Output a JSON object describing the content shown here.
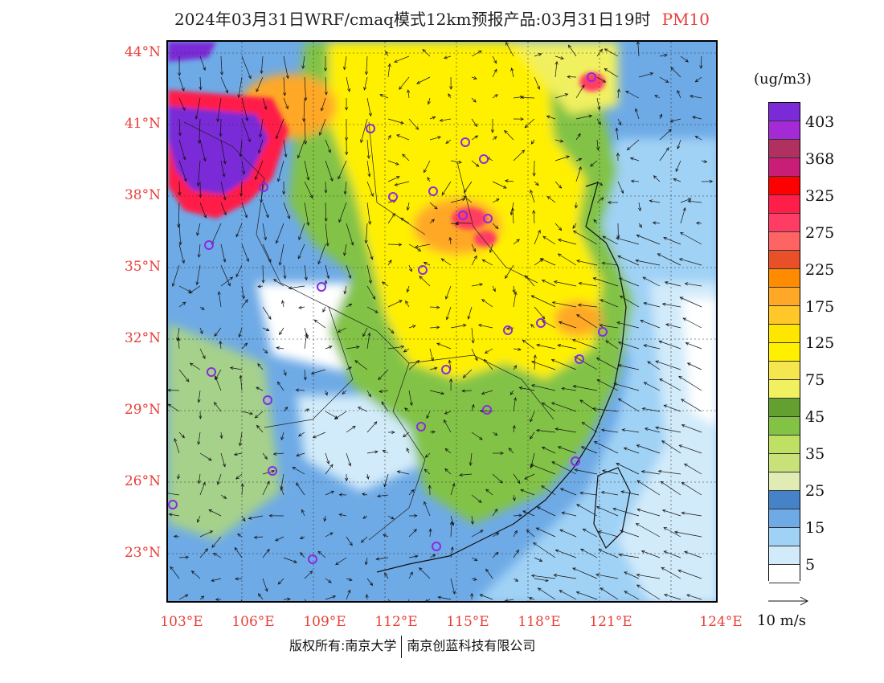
{
  "title": {
    "main": "2024年03月31日WRF/cmaq模式12km预报产品:03月31日19时",
    "pollutant": "PM10"
  },
  "map": {
    "lat_labels": [
      "44°N",
      "41°N",
      "38°N",
      "35°N",
      "32°N",
      "29°N",
      "26°N",
      "23°N"
    ],
    "lon_labels": [
      "103°E",
      "106°E",
      "109°E",
      "112°E",
      "115°E",
      "118°E",
      "121°E",
      "124°E"
    ],
    "station_marker_color": "#8a2be2",
    "vector_color": "#111111"
  },
  "legend": {
    "unit": "(ug/m3)",
    "labels": [
      "403",
      "368",
      "325",
      "275",
      "225",
      "175",
      "125",
      "75",
      "45",
      "35",
      "25",
      "15",
      "5"
    ],
    "colors": [
      "#7a2ad6",
      "#a42ad6",
      "#b03060",
      "#c81e78",
      "#ff0000",
      "#ff1e4a",
      "#ff3c64",
      "#ff6464",
      "#e8502a",
      "#ff8c00",
      "#ffa828",
      "#ffc828",
      "#ffe600",
      "#fff000",
      "#f5e650",
      "#f0f060",
      "#64a030",
      "#82c346",
      "#bee164",
      "#c8e178",
      "#e1ebb4",
      "#4682c8",
      "#6eaae6",
      "#a0d2f5",
      "#d2ebfa",
      "#ffffff"
    ],
    "vector_ref": "10 m/s"
  },
  "footer": {
    "copyright": "版权所有:南京大学",
    "company": "南京创蓝科技有限公司"
  }
}
